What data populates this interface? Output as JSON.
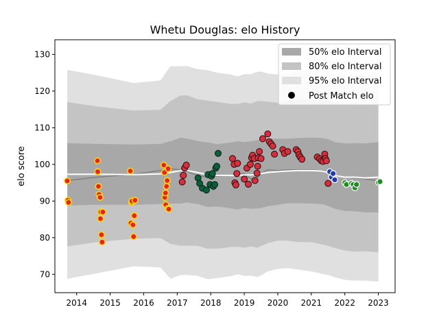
{
  "chart_data": {
    "type": "scatter",
    "title": "Whetu Douglas: elo History",
    "xlabel": "",
    "ylabel": "elo score",
    "xlim": [
      2013.35,
      2023.5
    ],
    "ylim": [
      65,
      134
    ],
    "x_ticks": [
      "2014",
      "2015",
      "2016",
      "2017",
      "2018",
      "2019",
      "2020",
      "2021",
      "2022",
      "2023"
    ],
    "y_ticks": [
      "70",
      "80",
      "90",
      "100",
      "110",
      "120",
      "130"
    ],
    "grid": false,
    "legend_position": "top-right",
    "legend": {
      "interval_50": "50% elo Interval",
      "interval_80": "80% elo Interval",
      "interval_95": "95% elo Interval",
      "post_match": "Post Match elo"
    },
    "colors": {
      "band_50": "#a8a8a8",
      "band_80": "#c4c4c4",
      "band_95": "#e0e0e0",
      "mean_line": "#ffffff",
      "median_line": "#808080",
      "yellow_marker_face": "#e8212e",
      "yellow_marker_edge": "#ffd700",
      "red_marker_face": "#d62e3c",
      "dark_green_marker_face": "#0b5e3a",
      "blue_marker_face": "#1f3ab5",
      "green_marker_face": "#1e8c1e"
    },
    "rating_curve": {
      "x": [
        2013.72,
        2014.6,
        2015.7,
        2016.5,
        2016.8,
        2017.1,
        2017.3,
        2017.6,
        2017.9,
        2018.2,
        2018.6,
        2018.8,
        2019.0,
        2019.2,
        2019.4,
        2019.5,
        2019.7,
        2020.0,
        2020.3,
        2020.6,
        2021.0,
        2021.3,
        2021.5,
        2021.7,
        2022.0,
        2022.3,
        2022.6,
        2023.0
      ],
      "mean": [
        97.3,
        97.3,
        97.2,
        97.4,
        97.8,
        98.3,
        98.3,
        97.8,
        97.2,
        97.0,
        97.0,
        97.0,
        97.1,
        97.1,
        97.3,
        97.5,
        97.8,
        98.0,
        98.2,
        98.3,
        98.3,
        98.2,
        97.8,
        97.0,
        96.5,
        96.5,
        96.3,
        96.5
      ],
      "median": [
        95.6,
        96.5,
        97.3,
        98.3,
        98.8,
        98.5,
        98.0,
        97.0,
        96.5,
        96.8,
        97.0,
        97.5,
        97.5,
        96.0,
        96.5,
        97.5,
        98.5,
        98.3,
        98.5,
        98.5,
        98.5,
        98.3,
        98.0,
        97.2,
        96.5,
        96.3,
        96.0,
        95.6
      ],
      "half_width_50": [
        8.5,
        8.3,
        8.2,
        8.2,
        8.5,
        9.0,
        8.7,
        8.6,
        8.8,
        8.5,
        9.0,
        9.3,
        9.0,
        9.2,
        9.3,
        9.4,
        9.2,
        9.0,
        8.8,
        8.9,
        9.0,
        9.0,
        9.1,
        9.1,
        9.2,
        9.3,
        9.4,
        9.6
      ],
      "half_width_80": [
        19.7,
        18.5,
        17.5,
        17.5,
        19.5,
        20.5,
        20.5,
        20.0,
        20.2,
        20.0,
        19.5,
        19.5,
        19.8,
        19.5,
        20.0,
        19.8,
        19.3,
        18.8,
        19.0,
        19.5,
        19.5,
        20.0,
        20.0,
        19.8,
        20.0,
        20.3,
        20.0,
        20.5
      ],
      "half_width_95": [
        28.5,
        27.0,
        25.0,
        25.5,
        29.0,
        28.5,
        28.5,
        28.2,
        28.5,
        28.0,
        27.5,
        27.0,
        27.5,
        27.5,
        28.0,
        27.8,
        27.0,
        26.5,
        26.5,
        27.0,
        27.5,
        28.0,
        28.0,
        27.8,
        28.0,
        28.2,
        28.0,
        28.5
      ]
    },
    "series": [
      {
        "color_group": "yellow",
        "x": [
          2013.72,
          2013.74,
          2013.76,
          2014.62,
          2014.63,
          2014.65,
          2014.67,
          2014.7,
          2014.71,
          2014.72,
          2014.74,
          2014.76,
          2014.78,
          2015.6,
          2015.62,
          2015.64,
          2015.65,
          2015.68,
          2015.7,
          2015.72,
          2015.74,
          2016.6,
          2016.62,
          2016.63,
          2016.65,
          2016.66,
          2016.68,
          2016.7,
          2016.72,
          2016.73,
          2016.75
        ],
        "y": [
          95.5,
          90.2,
          89.6,
          101.0,
          98.0,
          94.0,
          91.8,
          91.0,
          85.2,
          87.0,
          80.8,
          78.8,
          87.0,
          98.2,
          84.0,
          89.6,
          90.0,
          83.5,
          80.3,
          86.0,
          90.2,
          99.8,
          97.8,
          91.0,
          92.2,
          89.0,
          94.0,
          95.6,
          88.0,
          98.8,
          87.8
        ]
      },
      {
        "color_group": "red",
        "x": [
          2017.15,
          2017.18,
          2017.22,
          2017.27,
          2018.65,
          2018.7,
          2018.72,
          2018.75,
          2018.78,
          2018.8,
          2019.0,
          2019.08,
          2019.12,
          2019.18,
          2019.22,
          2019.25,
          2019.3,
          2019.32,
          2019.38,
          2019.4,
          2019.42,
          2019.45,
          2019.5,
          2019.55,
          2019.7,
          2019.75,
          2019.8,
          2019.85,
          2019.9,
          2020.15,
          2020.2,
          2020.3,
          2020.55,
          2020.6,
          2020.63,
          2020.67,
          2020.72,
          2021.18,
          2021.25,
          2021.3,
          2021.35,
          2021.4,
          2021.42,
          2021.45,
          2021.5
        ],
        "y": [
          95.2,
          97.0,
          99.0,
          99.8,
          101.6,
          100.0,
          95.0,
          94.4,
          97.5,
          100.3,
          96.0,
          99.0,
          94.6,
          100.0,
          101.8,
          102.5,
          101.6,
          95.6,
          97.6,
          99.5,
          101.8,
          103.5,
          101.6,
          107.0,
          108.3,
          106.2,
          105.6,
          105.0,
          102.8,
          104.0,
          103.0,
          103.5,
          104.0,
          103.5,
          102.6,
          102.0,
          101.4,
          102.0,
          101.5,
          101.0,
          100.8,
          102.8,
          101.6,
          101.0,
          94.8
        ]
      },
      {
        "color_group": "dark-green",
        "x": [
          2017.62,
          2017.67,
          2017.75,
          2017.87,
          2017.92,
          2017.98,
          2018.02,
          2018.05,
          2018.08,
          2018.12,
          2018.15,
          2018.18,
          2018.22
        ],
        "y": [
          96.3,
          94.8,
          93.5,
          93.0,
          97.2,
          94.5,
          96.8,
          97.5,
          94.0,
          94.5,
          99.0,
          99.5,
          103.0
        ]
      },
      {
        "color_group": "blue",
        "x": [
          2021.55,
          2021.6,
          2021.65,
          2021.7
        ],
        "y": [
          98.0,
          96.5,
          97.5,
          95.8
        ]
      },
      {
        "color_group": "green",
        "x": [
          2022.0,
          2022.05,
          2022.2,
          2022.25,
          2022.3,
          2022.35,
          2023.0,
          2023.05
        ],
        "y": [
          95.0,
          94.5,
          94.8,
          94.5,
          93.6,
          94.5,
          95.1,
          95.3
        ]
      }
    ]
  }
}
